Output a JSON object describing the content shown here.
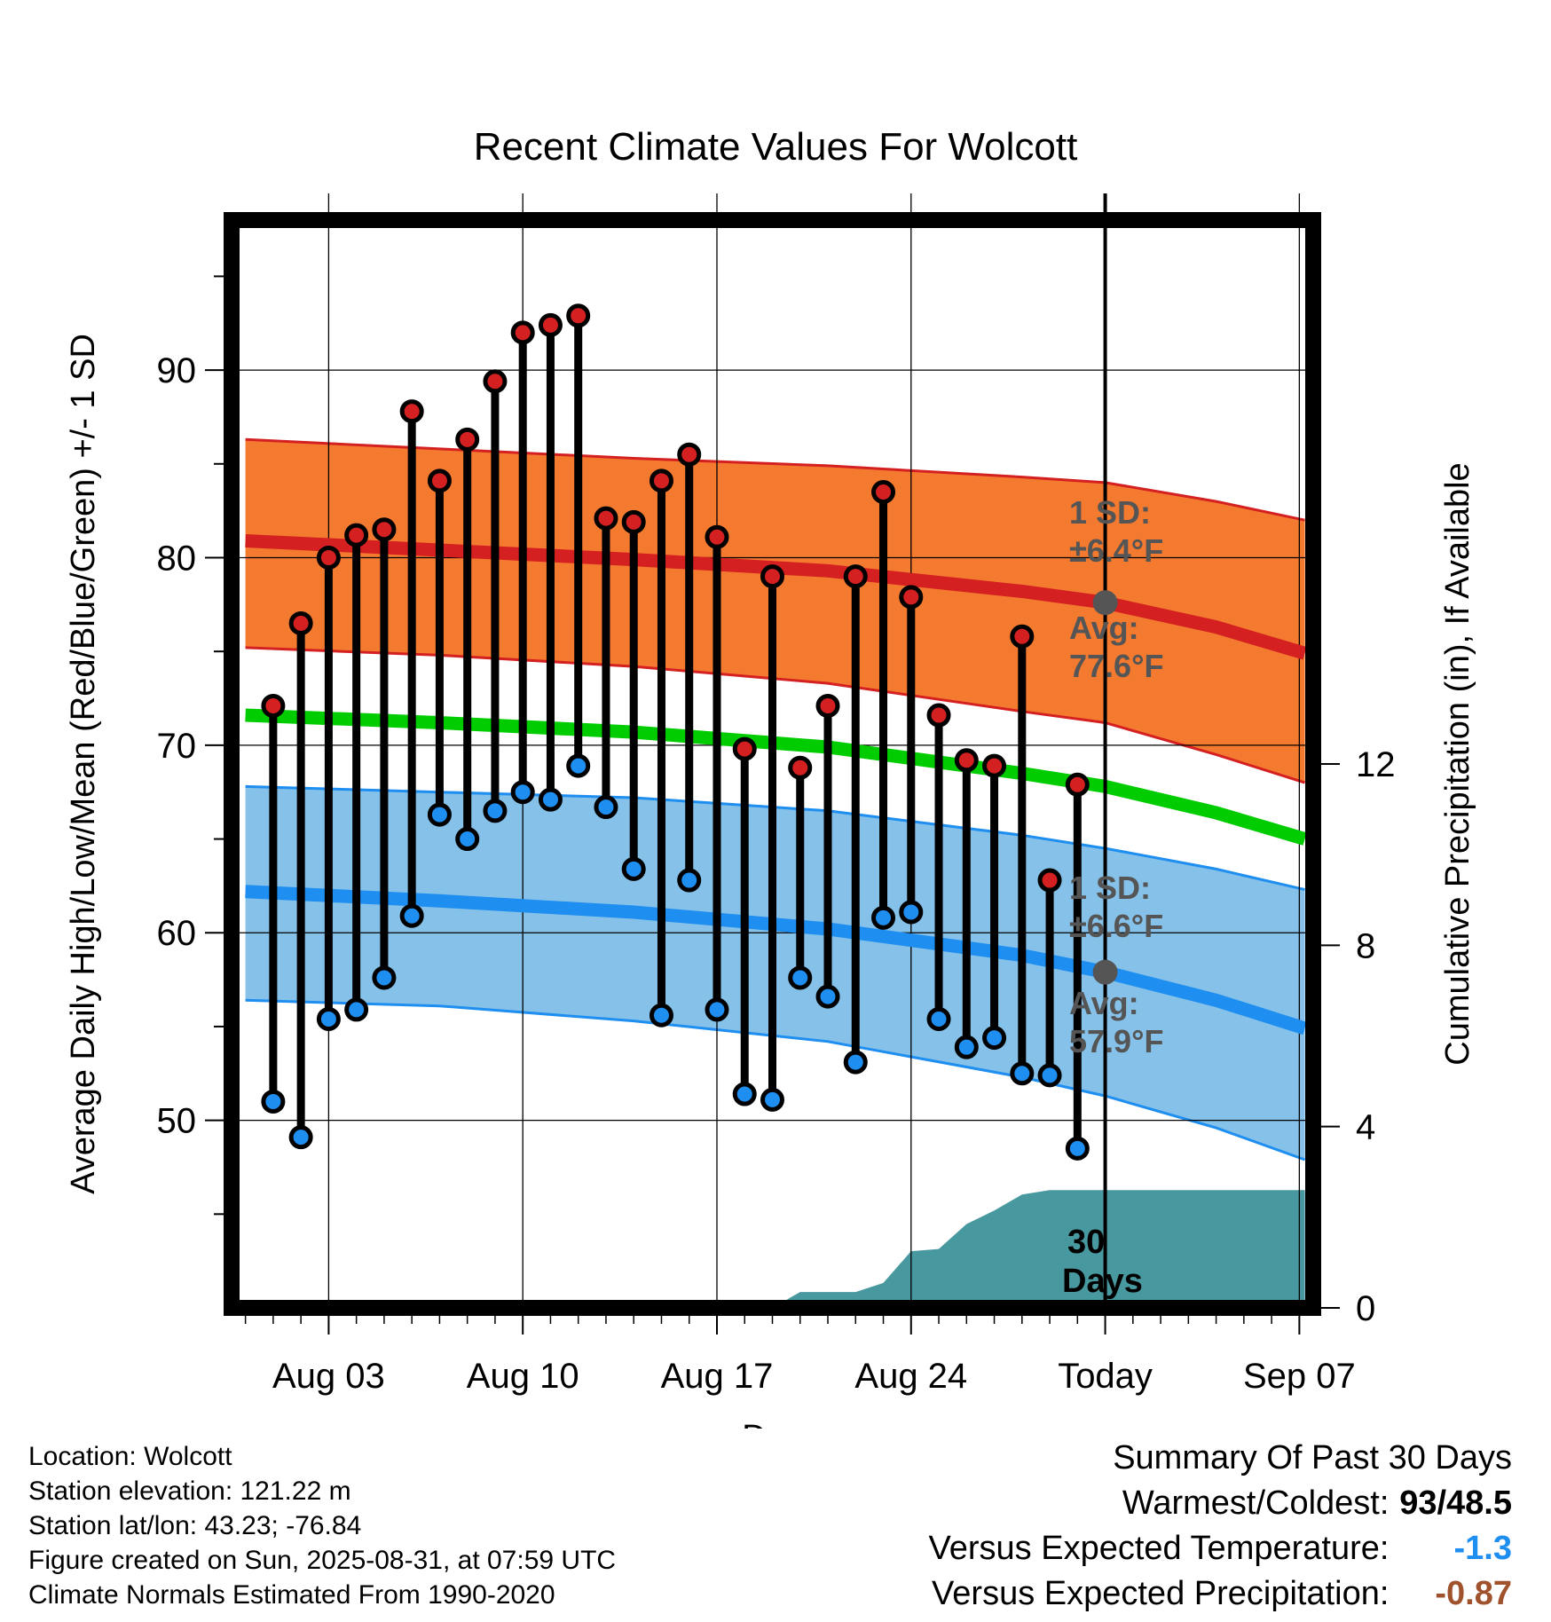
{
  "chart_data": {
    "type": "line",
    "title": "Recent Climate Values For Wolcott",
    "xlabel": "Day",
    "ylabel": "Average Daily High/Low/Mean (Red/Blue/Green) +/- 1 SD",
    "y2label": "Cumulative Precipitation (in), If Available",
    "ylim": [
      40,
      98
    ],
    "y2lim": [
      0,
      24
    ],
    "xlim": [
      -0.5,
      38.5
    ],
    "x_ticks": [
      {
        "x": 3,
        "label": "Aug 03"
      },
      {
        "x": 10,
        "label": "Aug 10"
      },
      {
        "x": 17,
        "label": "Aug 17"
      },
      {
        "x": 24,
        "label": "Aug 24"
      },
      {
        "x": 31,
        "label": "Today"
      },
      {
        "x": 38,
        "label": "Sep 07"
      }
    ],
    "y_ticks": [
      50,
      60,
      70,
      80,
      90
    ],
    "y2_ticks": [
      0,
      4,
      8,
      12
    ],
    "grid": true,
    "colors": {
      "high": "#d42020",
      "low": "#1e8ef0",
      "mean": "#00cc00",
      "high_band": "#f47a30",
      "low_band": "#85c1e8",
      "precip": "#48989f"
    },
    "days": [
      1,
      2,
      3,
      4,
      5,
      6,
      7,
      8,
      9,
      10,
      11,
      12,
      13,
      14,
      15,
      16,
      17,
      18,
      19,
      20,
      21,
      22,
      23,
      24,
      25,
      26,
      27,
      28,
      29,
      30
    ],
    "series": [
      {
        "name": "High",
        "values": [
          72.1,
          76.5,
          80.0,
          81.2,
          81.5,
          87.8,
          84.1,
          86.3,
          89.4,
          92.0,
          92.4,
          92.9,
          82.1,
          81.9,
          84.1,
          85.5,
          81.1,
          69.8,
          79.0,
          68.8,
          72.1,
          79.0,
          83.5,
          77.9,
          71.6,
          69.2,
          68.9,
          75.8,
          62.8,
          67.9
        ]
      },
      {
        "name": "Low",
        "values": [
          51.0,
          49.1,
          55.4,
          55.9,
          57.6,
          60.9,
          66.3,
          65.0,
          66.5,
          67.5,
          67.1,
          68.9,
          66.7,
          63.4,
          55.6,
          62.8,
          55.9,
          51.4,
          51.1,
          57.6,
          56.6,
          53.1,
          60.8,
          61.1,
          55.4,
          53.9,
          54.4,
          52.5,
          52.4,
          48.5
        ]
      }
    ],
    "normals": {
      "x": [
        0,
        7,
        14,
        21,
        28,
        31,
        35,
        38.2
      ],
      "high_mean": [
        80.9,
        80.4,
        79.9,
        79.3,
        78.2,
        77.6,
        76.3,
        74.9
      ],
      "high_upper": [
        86.3,
        85.8,
        85.3,
        84.9,
        84.3,
        84.0,
        83.0,
        82.0
      ],
      "high_lower": [
        75.2,
        74.8,
        74.2,
        73.3,
        71.8,
        71.2,
        69.5,
        68.0
      ],
      "mean": [
        71.6,
        71.2,
        70.7,
        69.9,
        68.5,
        67.8,
        66.4,
        65.0
      ],
      "low_mean": [
        62.2,
        61.7,
        61.1,
        60.2,
        58.8,
        57.9,
        56.4,
        54.9
      ],
      "low_upper": [
        67.8,
        67.5,
        67.2,
        66.5,
        65.2,
        64.5,
        63.4,
        62.3
      ],
      "low_lower": [
        56.4,
        56.1,
        55.3,
        54.2,
        52.3,
        51.3,
        49.6,
        47.9
      ]
    },
    "precip_cumulative": {
      "x": [
        0,
        19,
        20,
        21,
        22,
        23,
        24,
        25,
        26,
        27,
        28,
        29,
        30,
        38.2
      ],
      "values": [
        0,
        0,
        0.35,
        0.35,
        0.35,
        0.55,
        1.25,
        1.3,
        1.85,
        2.15,
        2.5,
        2.6,
        2.6,
        2.6
      ]
    },
    "annotations": {
      "high_sd": "1 SD:",
      "high_sd_value": "±6.4°F",
      "high_avg_label": "Avg:",
      "high_avg_value": "77.6°F",
      "high_avg": 77.6,
      "low_sd": "1 SD:",
      "low_sd_value": "±6.6°F",
      "low_avg_label": "Avg:",
      "low_avg_value": "57.9°F",
      "low_avg": 57.9,
      "precip_days": "30",
      "precip_days_label": "Days"
    }
  },
  "footer": {
    "location": "Location: Wolcott",
    "elevation": "Station elevation: 121.22 m",
    "latlon": "Station lat/lon: 43.23; -76.84",
    "created": "Figure created on Sun, 2025-08-31, at 07:59 UTC",
    "normals": "Climate Normals Estimated From 1990-2020"
  },
  "summary": {
    "title": "Summary Of Past 30 Days",
    "warm_label": "Warmest/Coldest:",
    "warm_value": "93/48.5",
    "temp_label": "Versus Expected Temperature:",
    "temp_value": "-1.3",
    "temp_color": "#1e8ef0",
    "precip_label": "Versus Expected Precipitation:",
    "precip_value": "-0.87",
    "precip_color": "#a0522d"
  }
}
